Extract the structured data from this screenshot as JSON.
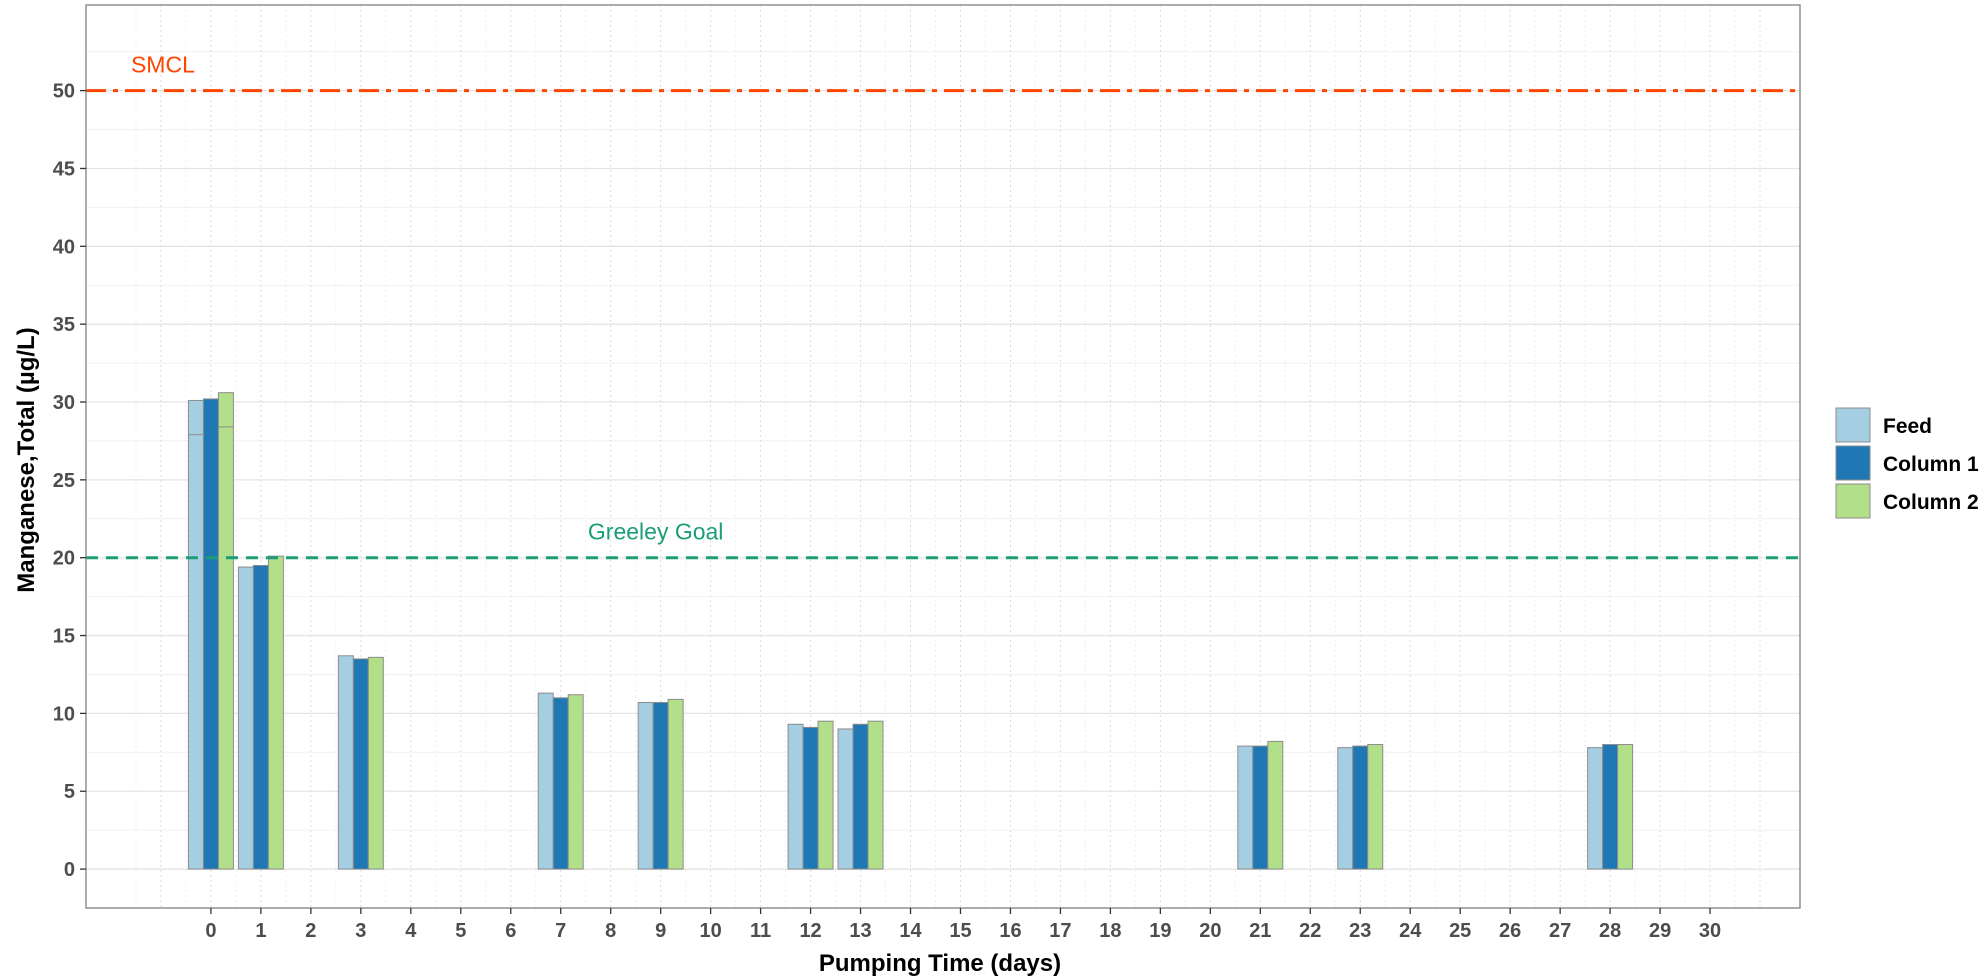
{
  "chart_data": {
    "type": "bar",
    "x_ticks": [
      "0",
      "1",
      "2",
      "3",
      "4",
      "5",
      "6",
      "7",
      "8",
      "9",
      "10",
      "11",
      "12",
      "13",
      "14",
      "15",
      "16",
      "17",
      "18",
      "19",
      "20",
      "21",
      "22",
      "23",
      "24",
      "25",
      "26",
      "27",
      "28",
      "29",
      "30"
    ],
    "categories": [
      "0",
      "1",
      "3",
      "7",
      "9",
      "12",
      "13",
      "21",
      "23",
      "28"
    ],
    "series": [
      {
        "name": "Feed",
        "color": "#a6cee3",
        "values": [
          30.1,
          19.4,
          13.7,
          11.3,
          10.7,
          9.3,
          9.0,
          7.9,
          7.8,
          7.8
        ]
      },
      {
        "name": "Column 1",
        "color": "#1f78b4",
        "values": [
          30.2,
          19.5,
          13.5,
          11.0,
          10.7,
          9.1,
          9.3,
          7.9,
          7.9,
          8.0
        ]
      },
      {
        "name": "Column 2",
        "color": "#b2df8a",
        "values": [
          30.6,
          20.1,
          13.6,
          11.2,
          10.9,
          9.5,
          9.5,
          8.2,
          8.0,
          8.0
        ]
      }
    ],
    "inner_segment_marks": [
      {
        "category": "0",
        "series": "Feed",
        "value": 27.9
      },
      {
        "category": "0",
        "series": "Column 2",
        "value": 28.4
      }
    ],
    "reference_lines": [
      {
        "label": "SMCL",
        "value": 50,
        "color": "#ff4500",
        "style": "dash-dot"
      },
      {
        "label": "Greeley Goal",
        "value": 20,
        "color": "#1b9e77",
        "style": "dashed"
      }
    ],
    "xlabel": "Pumping Time (days)",
    "ylabel": "Manganese,Total (µg/L)",
    "y_ticks": [
      "0",
      "5",
      "10",
      "15",
      "20",
      "25",
      "30",
      "35",
      "40",
      "45",
      "50"
    ],
    "ylim": [
      -2.5,
      55.5
    ],
    "xlim": [
      -2.5,
      31.8
    ],
    "grid": true,
    "legend_position": "right"
  }
}
